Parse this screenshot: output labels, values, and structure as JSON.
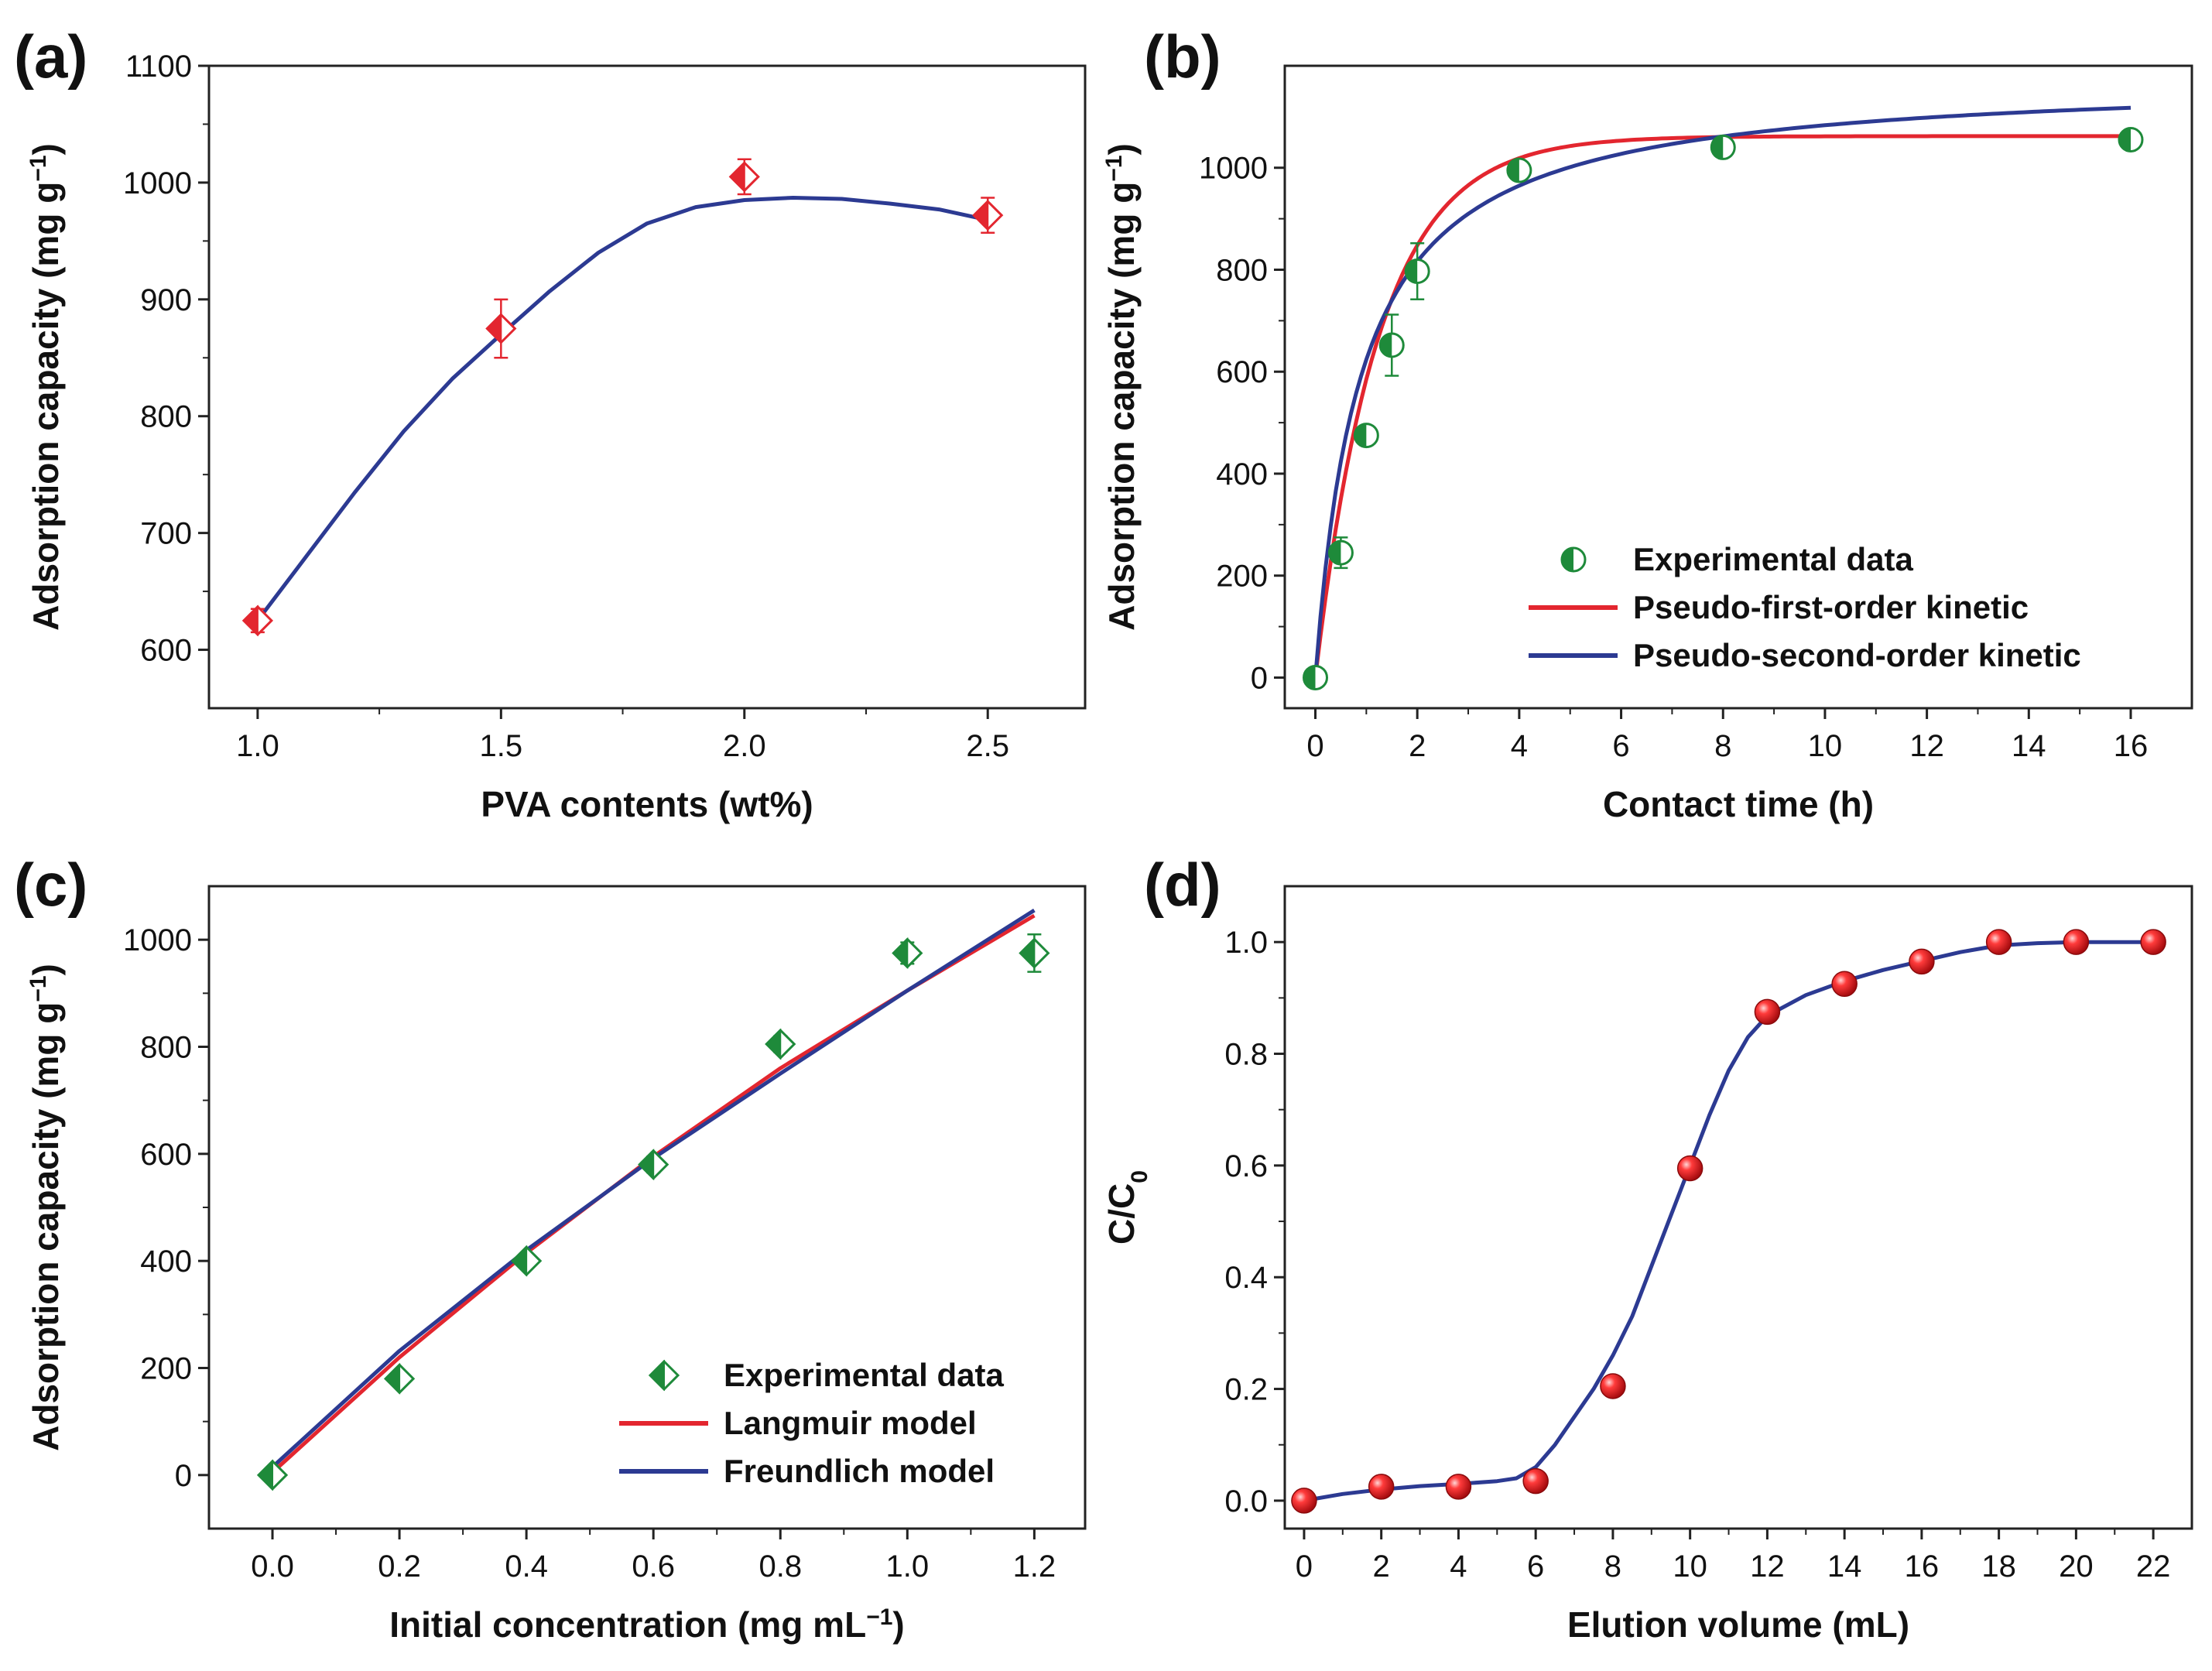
{
  "colors": {
    "red": "#e3262f",
    "blue": "#2c3a92",
    "green": "#1e8a3a",
    "axis": "#222222"
  },
  "chart_data": [
    {
      "panel": "(a)",
      "type": "scatter",
      "xlabel": "PVA contents (wt%)",
      "ylabel": "Adsorption capacity (mg g",
      "ylabel_sup": "−1",
      "ylabel_end": ")",
      "xlim": [
        0.9,
        2.7
      ],
      "ylim": [
        550,
        1100
      ],
      "xticks": [
        1.0,
        1.5,
        2.0,
        2.5
      ],
      "xtick_labels": [
        "1.0",
        "1.5",
        "2.0",
        "2.5"
      ],
      "yticks": [
        600,
        700,
        800,
        900,
        1000,
        1100
      ],
      "ytick_labels": [
        "600",
        "700",
        "800",
        "900",
        "1000",
        "1100"
      ],
      "marker": "half-diamond",
      "marker_color": "red",
      "points": [
        {
          "x": 1.0,
          "y": 625,
          "err": 10
        },
        {
          "x": 1.5,
          "y": 875,
          "err": 25
        },
        {
          "x": 2.0,
          "y": 1005,
          "err": 15
        },
        {
          "x": 2.5,
          "y": 972,
          "err": 15
        }
      ],
      "series": [
        {
          "name": "fit",
          "color": "blue",
          "x": [
            1.0,
            1.1,
            1.2,
            1.3,
            1.4,
            1.5,
            1.6,
            1.7,
            1.8,
            1.9,
            2.0,
            2.1,
            2.2,
            2.3,
            2.4,
            2.5
          ],
          "y": [
            625,
            680,
            735,
            787,
            832,
            870,
            907,
            940,
            965,
            979,
            985,
            987,
            986,
            982,
            977,
            968
          ]
        }
      ]
    },
    {
      "panel": "(b)",
      "type": "scatter",
      "xlabel": "Contact time (h)",
      "ylabel": "Adsorption capacity (mg g",
      "ylabel_sup": "−1",
      "ylabel_end": ")",
      "xlim": [
        -0.6,
        17.2
      ],
      "ylim": [
        -60,
        1200
      ],
      "xticks": [
        0,
        2,
        4,
        6,
        8,
        10,
        12,
        14,
        16
      ],
      "xtick_labels": [
        "0",
        "2",
        "4",
        "6",
        "8",
        "10",
        "12",
        "14",
        "16"
      ],
      "yticks": [
        0,
        200,
        400,
        600,
        800,
        1000
      ],
      "ytick_labels": [
        "0",
        "200",
        "400",
        "600",
        "800",
        "1000"
      ],
      "marker": "half-circle",
      "marker_color": "green",
      "points": [
        {
          "x": 0,
          "y": 0,
          "err": 0
        },
        {
          "x": 0.5,
          "y": 245,
          "err": 30
        },
        {
          "x": 1,
          "y": 475,
          "err": 10
        },
        {
          "x": 1.5,
          "y": 652,
          "err": 60
        },
        {
          "x": 2,
          "y": 797,
          "err": 55
        },
        {
          "x": 4,
          "y": 995,
          "err": 10
        },
        {
          "x": 8,
          "y": 1040,
          "err": 15
        },
        {
          "x": 16,
          "y": 1055,
          "err": 10
        }
      ],
      "series": [
        {
          "name": "Pseudo-first-order kinetic",
          "color": "red",
          "model": "pfo",
          "qe": 1062,
          "k": 0.8
        },
        {
          "name": "Pseudo-second-order kinetic",
          "color": "blue",
          "model": "pso",
          "qe": 1180,
          "k": 0.00095
        }
      ],
      "legend": {
        "position": "lower-right",
        "entries": [
          "Experimental data",
          "Pseudo-first-order kinetic",
          "Pseudo-second-order kinetic"
        ]
      }
    },
    {
      "panel": "(c)",
      "type": "scatter",
      "xlabel": "Initial concentration (mg mL",
      "xlabel_sup": "−1",
      "xlabel_end": ")",
      "ylabel": "Adsorption capacity (mg g",
      "ylabel_sup": "−1",
      "ylabel_end": ")",
      "xlim": [
        -0.1,
        1.28
      ],
      "ylim": [
        -100,
        1100
      ],
      "xticks": [
        0.0,
        0.2,
        0.4,
        0.6,
        0.8,
        1.0,
        1.2
      ],
      "xtick_labels": [
        "0.0",
        "0.2",
        "0.4",
        "0.6",
        "0.8",
        "1.0",
        "1.2"
      ],
      "yticks": [
        0,
        200,
        400,
        600,
        800,
        1000
      ],
      "ytick_labels": [
        "0",
        "200",
        "400",
        "600",
        "800",
        "1000"
      ],
      "marker": "half-diamond",
      "marker_color": "green",
      "points": [
        {
          "x": 0.0,
          "y": 0,
          "err": 0
        },
        {
          "x": 0.2,
          "y": 180,
          "err": 10
        },
        {
          "x": 0.4,
          "y": 400,
          "err": 10
        },
        {
          "x": 0.6,
          "y": 580,
          "err": 15
        },
        {
          "x": 0.8,
          "y": 805,
          "err": 15
        },
        {
          "x": 1.0,
          "y": 975,
          "err": 20
        },
        {
          "x": 1.2,
          "y": 975,
          "err": 35
        }
      ],
      "series": [
        {
          "name": "Langmuir model",
          "color": "red",
          "x": [
            0.0,
            0.2,
            0.4,
            0.6,
            0.8,
            1.0,
            1.2
          ],
          "y": [
            5,
            220,
            415,
            595,
            760,
            905,
            1045
          ]
        },
        {
          "name": "Freundlich model",
          "color": "blue",
          "x": [
            0.0,
            0.2,
            0.4,
            0.6,
            0.8,
            1.0,
            1.2
          ],
          "y": [
            15,
            232,
            420,
            592,
            750,
            905,
            1055
          ]
        }
      ],
      "legend": {
        "position": "lower-right",
        "entries": [
          "Experimental data",
          "Langmuir model",
          "Freundlich model"
        ]
      }
    },
    {
      "panel": "(d)",
      "type": "scatter",
      "xlabel": "Elution volume (mL)",
      "ylabel": "C/C",
      "ylabel_sub": "0",
      "xlim": [
        -0.5,
        23
      ],
      "ylim": [
        -0.05,
        1.1
      ],
      "xticks": [
        0,
        2,
        4,
        6,
        8,
        10,
        12,
        14,
        16,
        18,
        20,
        22
      ],
      "xtick_labels": [
        "0",
        "2",
        "4",
        "6",
        "8",
        "10",
        "12",
        "14",
        "16",
        "18",
        "20",
        "22"
      ],
      "yticks": [
        0.0,
        0.2,
        0.4,
        0.6,
        0.8,
        1.0
      ],
      "ytick_labels": [
        "0.0",
        "0.2",
        "0.4",
        "0.6",
        "0.8",
        "1.0"
      ],
      "marker": "sphere",
      "marker_color": "red",
      "points": [
        {
          "x": 0,
          "y": 0.0
        },
        {
          "x": 2,
          "y": 0.025
        },
        {
          "x": 4,
          "y": 0.025
        },
        {
          "x": 6,
          "y": 0.035
        },
        {
          "x": 8,
          "y": 0.205
        },
        {
          "x": 10,
          "y": 0.595
        },
        {
          "x": 12,
          "y": 0.875
        },
        {
          "x": 14,
          "y": 0.925
        },
        {
          "x": 16,
          "y": 0.965
        },
        {
          "x": 18,
          "y": 1.0
        },
        {
          "x": 20,
          "y": 1.0
        },
        {
          "x": 22,
          "y": 1.0
        }
      ],
      "series": [
        {
          "name": "fit",
          "color": "blue",
          "x": [
            0,
            1,
            2,
            3,
            4,
            5,
            5.5,
            6,
            6.5,
            7,
            7.5,
            8,
            8.5,
            9,
            9.5,
            10,
            10.5,
            11,
            11.5,
            12,
            13,
            14,
            15,
            16,
            17,
            18,
            19,
            20,
            21,
            22
          ],
          "y": [
            0.0,
            0.012,
            0.02,
            0.026,
            0.03,
            0.035,
            0.04,
            0.06,
            0.1,
            0.15,
            0.2,
            0.26,
            0.33,
            0.42,
            0.51,
            0.6,
            0.69,
            0.77,
            0.83,
            0.868,
            0.905,
            0.93,
            0.95,
            0.966,
            0.982,
            0.994,
            0.998,
            1.0,
            1.0,
            1.0
          ]
        }
      ]
    }
  ]
}
